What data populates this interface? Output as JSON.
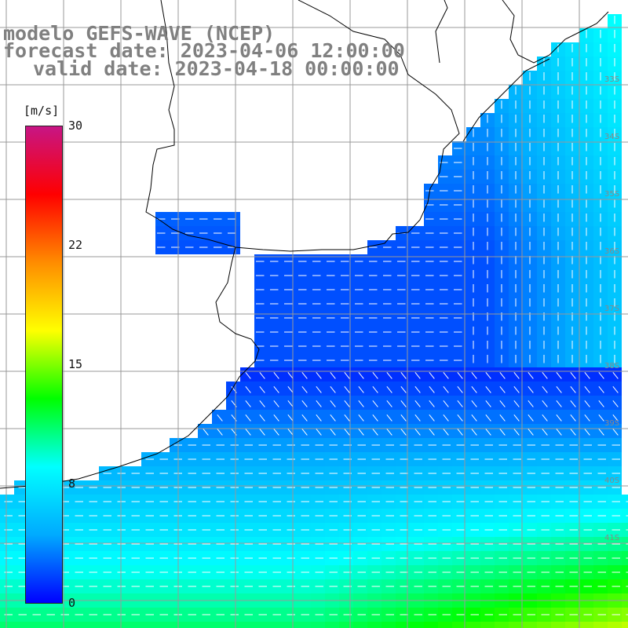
{
  "header": {
    "model": "modelo GEFS-WAVE (NCEP)",
    "forecast": "forecast date: 2023-04-06 12:00:00",
    "valid": "valid date: 2023-04-18 00:00:00"
  },
  "colorbar": {
    "unit": "[m/s]",
    "min": 0,
    "max": 30,
    "ticks": [
      "30",
      "22",
      "15",
      "8",
      "0"
    ],
    "colors": [
      "#0000ff",
      "#00aaff",
      "#00ffff",
      "#00ff00",
      "#ffff00",
      "#ff8c00",
      "#ff0000",
      "#c71585"
    ]
  },
  "lat_labels": [
    "33S",
    "34S",
    "35S",
    "36S",
    "37S",
    "38S",
    "39S",
    "40S",
    "41S"
  ],
  "colors": {
    "land": "#ffffff",
    "grid": "#999999",
    "coast": "#000000",
    "arrow": "#ffffff"
  }
}
